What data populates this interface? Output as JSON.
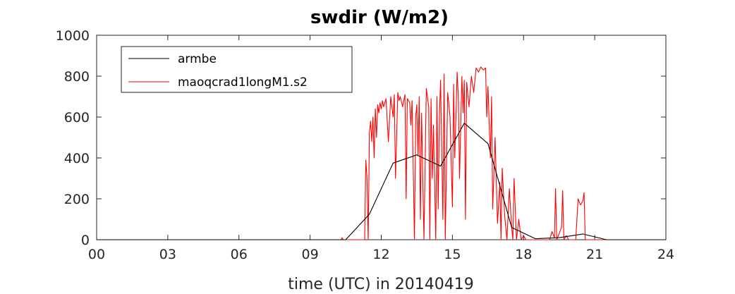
{
  "chart_data": {
    "type": "line",
    "title": "swdir  (W/m2)",
    "xlabel": "time (UTC) in 20140419",
    "ylabel": "",
    "xlim": [
      0,
      24
    ],
    "ylim": [
      0,
      1000
    ],
    "x_ticks": [
      0,
      3,
      6,
      9,
      12,
      15,
      18,
      21,
      24
    ],
    "x_tick_labels": [
      "00",
      "03",
      "06",
      "09",
      "12",
      "15",
      "18",
      "21",
      "24"
    ],
    "y_ticks": [
      0,
      200,
      400,
      600,
      800,
      1000
    ],
    "y_tick_labels": [
      "0",
      "200",
      "400",
      "600",
      "800",
      "1000"
    ],
    "grid": false,
    "legend_position": "top-left",
    "series": [
      {
        "name": "armbe",
        "color": "#000000",
        "x": [
          0,
          10.5,
          11.5,
          12.5,
          13.5,
          14.5,
          15.5,
          16.5,
          17.5,
          18.5,
          19.5,
          20.5,
          21.5,
          24
        ],
        "y": [
          0,
          0,
          125,
          375,
          415,
          360,
          570,
          470,
          60,
          5,
          10,
          28,
          0,
          0
        ]
      },
      {
        "name": "maoqcrad1longM1.s2",
        "color": "#ff0000",
        "x": [
          0,
          10.3,
          10.35,
          10.4,
          11.3,
          11.35,
          11.4,
          11.45,
          11.5,
          11.55,
          11.6,
          11.65,
          11.7,
          11.75,
          11.8,
          11.85,
          11.9,
          11.95,
          12.0,
          12.05,
          12.1,
          12.2,
          12.3,
          12.4,
          12.5,
          12.55,
          12.6,
          12.7,
          12.75,
          12.8,
          12.9,
          13.0,
          13.05,
          13.1,
          13.2,
          13.25,
          13.3,
          13.4,
          13.45,
          13.5,
          13.55,
          13.6,
          13.65,
          13.7,
          13.8,
          13.9,
          14.0,
          14.05,
          14.1,
          14.15,
          14.2,
          14.3,
          14.35,
          14.4,
          14.45,
          14.5,
          14.6,
          14.65,
          14.7,
          14.8,
          14.9,
          15.0,
          15.05,
          15.1,
          15.2,
          15.25,
          15.3,
          15.4,
          15.45,
          15.5,
          15.55,
          15.6,
          15.7,
          15.8,
          15.9,
          16.0,
          16.1,
          16.2,
          16.3,
          16.4,
          16.45,
          16.5,
          16.6,
          16.65,
          16.7,
          16.8,
          16.9,
          17.0,
          17.05,
          17.1,
          17.2,
          17.3,
          17.4,
          17.5,
          17.55,
          17.6,
          17.7,
          17.8,
          17.9,
          18.0,
          18.1,
          18.2,
          19.1,
          19.2,
          19.3,
          19.35,
          19.4,
          19.5,
          19.6,
          19.65,
          19.7,
          19.8,
          19.9,
          20.0,
          20.1,
          20.2,
          20.3,
          20.4,
          20.5,
          20.55,
          20.6,
          20.7,
          24
        ],
        "y": [
          0,
          0,
          10,
          0,
          0,
          390,
          300,
          0,
          520,
          580,
          480,
          600,
          400,
          640,
          500,
          660,
          620,
          670,
          640,
          680,
          650,
          690,
          480,
          700,
          600,
          710,
          300,
          720,
          680,
          700,
          650,
          710,
          200,
          690,
          670,
          560,
          680,
          0,
          600,
          660,
          410,
          700,
          100,
          620,
          0,
          740,
          650,
          0,
          690,
          300,
          560,
          0,
          700,
          150,
          600,
          780,
          100,
          810,
          0,
          720,
          600,
          160,
          760,
          400,
          820,
          700,
          300,
          800,
          620,
          780,
          100,
          770,
          650,
          800,
          720,
          840,
          820,
          845,
          830,
          840,
          600,
          750,
          400,
          700,
          150,
          500,
          80,
          280,
          0,
          350,
          120,
          0,
          250,
          60,
          0,
          300,
          0,
          100,
          0,
          20,
          0,
          0,
          0,
          40,
          10,
          250,
          0,
          30,
          60,
          240,
          0,
          20,
          0,
          0,
          0,
          0,
          200,
          170,
          190,
          230,
          0,
          0,
          0
        ]
      }
    ]
  }
}
